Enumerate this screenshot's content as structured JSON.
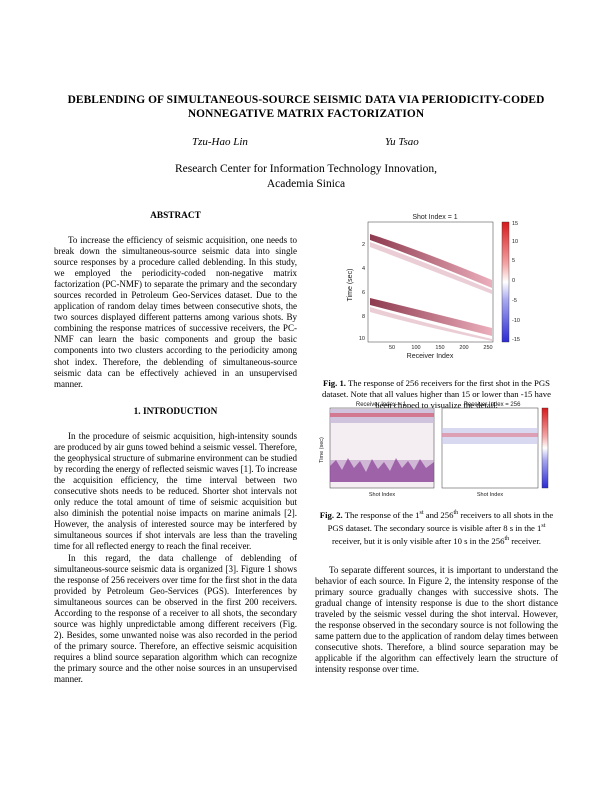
{
  "title": {
    "line1": "DEBLENDING OF SIMULTANEOUS-SOURCE SEISMIC DATA VIA PERIODICITY-CODED",
    "line2": "NONNEGATIVE MATRIX FACTORIZATION"
  },
  "authors": [
    "Tzu-Hao Lin",
    "Yu Tsao"
  ],
  "affiliation": {
    "line1": "Research Center for Information Technology Innovation,",
    "line2": "Academia Sinica"
  },
  "abstract": {
    "heading": "ABSTRACT",
    "text": "To increase the efficiency of seismic acquisition, one needs to break down the simultaneous-source seismic data into single source responses by a procedure called deblending. In this study, we employed the periodicity-coded non-negative matrix factorization (PC-NMF) to separate the primary and the secondary sources recorded in Petroleum Geo-Services dataset. Due to the application of random delay times between consecutive shots, the two sources displayed different patterns among various shots. By combining the response matrices of successive receivers, the PC-NMF can learn the basic components and group the basic components into two clusters according to the periodicity among shot index. Therefore, the deblending of simultaneous-source seismic data can be effectively achieved in an unsupervised manner."
  },
  "introduction": {
    "heading": "1. INTRODUCTION",
    "paragraphs": [
      "In the procedure of seismic acquisition, high-intensity sounds are produced by air guns towed behind a seismic vessel. Therefore, the geophysical structure of submarine environment can be studied by recording the energy of reflected seismic waves [1]. To increase the acquisition efficiency, the time interval between two consecutive shots needs to be reduced. Shorter shot intervals not only reduce the total amount of time of seismic acquisition but also diminish the potential noise impacts on marine animals [2]. However, the analysis of interested source may be interfered by simultaneous sources if shot intervals are less than the traveling time for all reflected energy to reach the final receiver.",
      "In this regard, the data challenge of deblending of simultaneous-source seismic data is organized [3]. Figure 1 shows the response of 256 receivers over time for the first shot in the data provided by Petroleum Geo-Services (PGS). Interferences by simultaneous sources can be observed in the first 200 receivers. According to the response of a receiver to all shots, the secondary source was highly unpredictable among different receivers (Fig. 2). Besides, some unwanted noise was also recorded in the period of the primary source. Therefore, an effective seismic acquisition requires a blind source separation algorithm which can recognize the primary source and the other noise sources in an unsupervised manner."
    ]
  },
  "fig1": {
    "plot_title": "Shot Index = 1",
    "xlabel": "Receiver Index",
    "ylabel": "Time (sec)",
    "xticks": [
      "50",
      "100",
      "150",
      "200",
      "250"
    ],
    "yticks": [
      "2",
      "4",
      "6",
      "8",
      "10"
    ],
    "cbar_ticks": [
      "15",
      "10",
      "5",
      "0",
      "-5",
      "-10",
      "-15"
    ],
    "caption_label": "Fig. 1.",
    "caption": "The response of 256 receivers for the first shot in the PGS dataset. Note that all values higher than 15 or lower than -15 have been clipped to visualize the detail."
  },
  "fig2": {
    "left_title": "Receiver Index = 1",
    "right_title": "Receiver Index = 256",
    "xlabel": "Shot Index",
    "ylabel": "Time (sec)",
    "caption_label": "Fig. 2.",
    "caption_pre": "The response of the 1",
    "sup1": "st",
    "caption_mid": " and 256",
    "sup2": "th",
    "caption_post": " receivers to all shots in the PGS dataset. The secondary source is visible after 8 s in the 1",
    "sup3": "st",
    "caption_post2": " receiver, but it is only visible after 10 s in the 256",
    "sup4": "th",
    "caption_end": " receiver."
  },
  "right_text": {
    "paragraph": "To separate different sources, it is important to understand the behavior of each source. In Figure 2, the intensity response of the primary source gradually changes with successive shots. The gradual change of intensity response is due to the short distance traveled by the seismic vessel during the shot interval. However, the response observed in the secondary source is not following the same pattern due to the application of random delay times between consecutive shots. Therefore, a blind source separation may be applicable if the algorithm can effectively learn the structure of intensity response over time."
  },
  "colors": {
    "colormap_high": "#d7191c",
    "colormap_mid": "#ffffff",
    "colormap_low": "#2b2bd4"
  }
}
